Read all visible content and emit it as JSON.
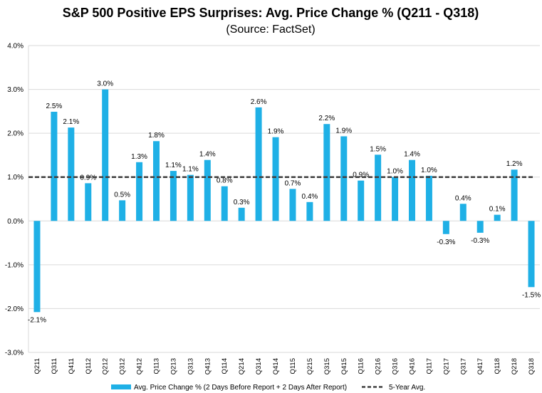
{
  "chart_data": {
    "type": "bar",
    "title": "S&P 500 Positive EPS Surprises: Avg. Price Change % (Q211 - Q318)",
    "subtitle": "(Source: FactSet)",
    "categories": [
      "Q211",
      "Q311",
      "Q411",
      "Q112",
      "Q212",
      "Q312",
      "Q412",
      "Q113",
      "Q213",
      "Q313",
      "Q413",
      "Q114",
      "Q214",
      "Q314",
      "Q414",
      "Q115",
      "Q215",
      "Q315",
      "Q415",
      "Q116",
      "Q216",
      "Q316",
      "Q416",
      "Q117",
      "Q217",
      "Q317",
      "Q417",
      "Q118",
      "Q218",
      "Q318"
    ],
    "series": [
      {
        "name": "Avg. Price Change % (2 Days Before Report + 2 Days After Report)",
        "values": [
          -2.08,
          2.49,
          2.13,
          0.86,
          3.0,
          0.47,
          1.34,
          1.82,
          1.14,
          1.05,
          1.39,
          0.79,
          0.3,
          2.59,
          1.91,
          0.73,
          0.43,
          2.21,
          1.93,
          0.92,
          1.51,
          1.0,
          1.39,
          1.03,
          -0.3,
          0.39,
          -0.27,
          0.14,
          1.17,
          -1.51
        ],
        "labels": [
          "-2.1%",
          "2.5%",
          "2.1%",
          "0.9%",
          "3.0%",
          "0.5%",
          "1.3%",
          "1.8%",
          "1.1%",
          "1.1%",
          "1.4%",
          "0.8%",
          "0.3%",
          "2.6%",
          "1.9%",
          "0.7%",
          "0.4%",
          "2.2%",
          "1.9%",
          "0.9%",
          "1.5%",
          "1.0%",
          "1.4%",
          "1.0%",
          "-0.3%",
          "0.4%",
          "-0.3%",
          "0.1%",
          "1.2%",
          "-1.5%"
        ],
        "color": "#1fb0e6"
      }
    ],
    "reference_line": {
      "name": "5-Year Avg.",
      "value": 1.0,
      "color": "#404040",
      "style": "dashed"
    },
    "ylim": [
      -3.0,
      4.0
    ],
    "yticks": [
      -3.0,
      -2.0,
      -1.0,
      0.0,
      1.0,
      2.0,
      3.0,
      4.0
    ],
    "ytick_labels": [
      "-3.0%",
      "-2.0%",
      "-1.0%",
      "0.0%",
      "1.0%",
      "2.0%",
      "3.0%",
      "4.0%"
    ],
    "grid": true,
    "legend_position": "bottom",
    "xlabel": "",
    "ylabel": ""
  }
}
